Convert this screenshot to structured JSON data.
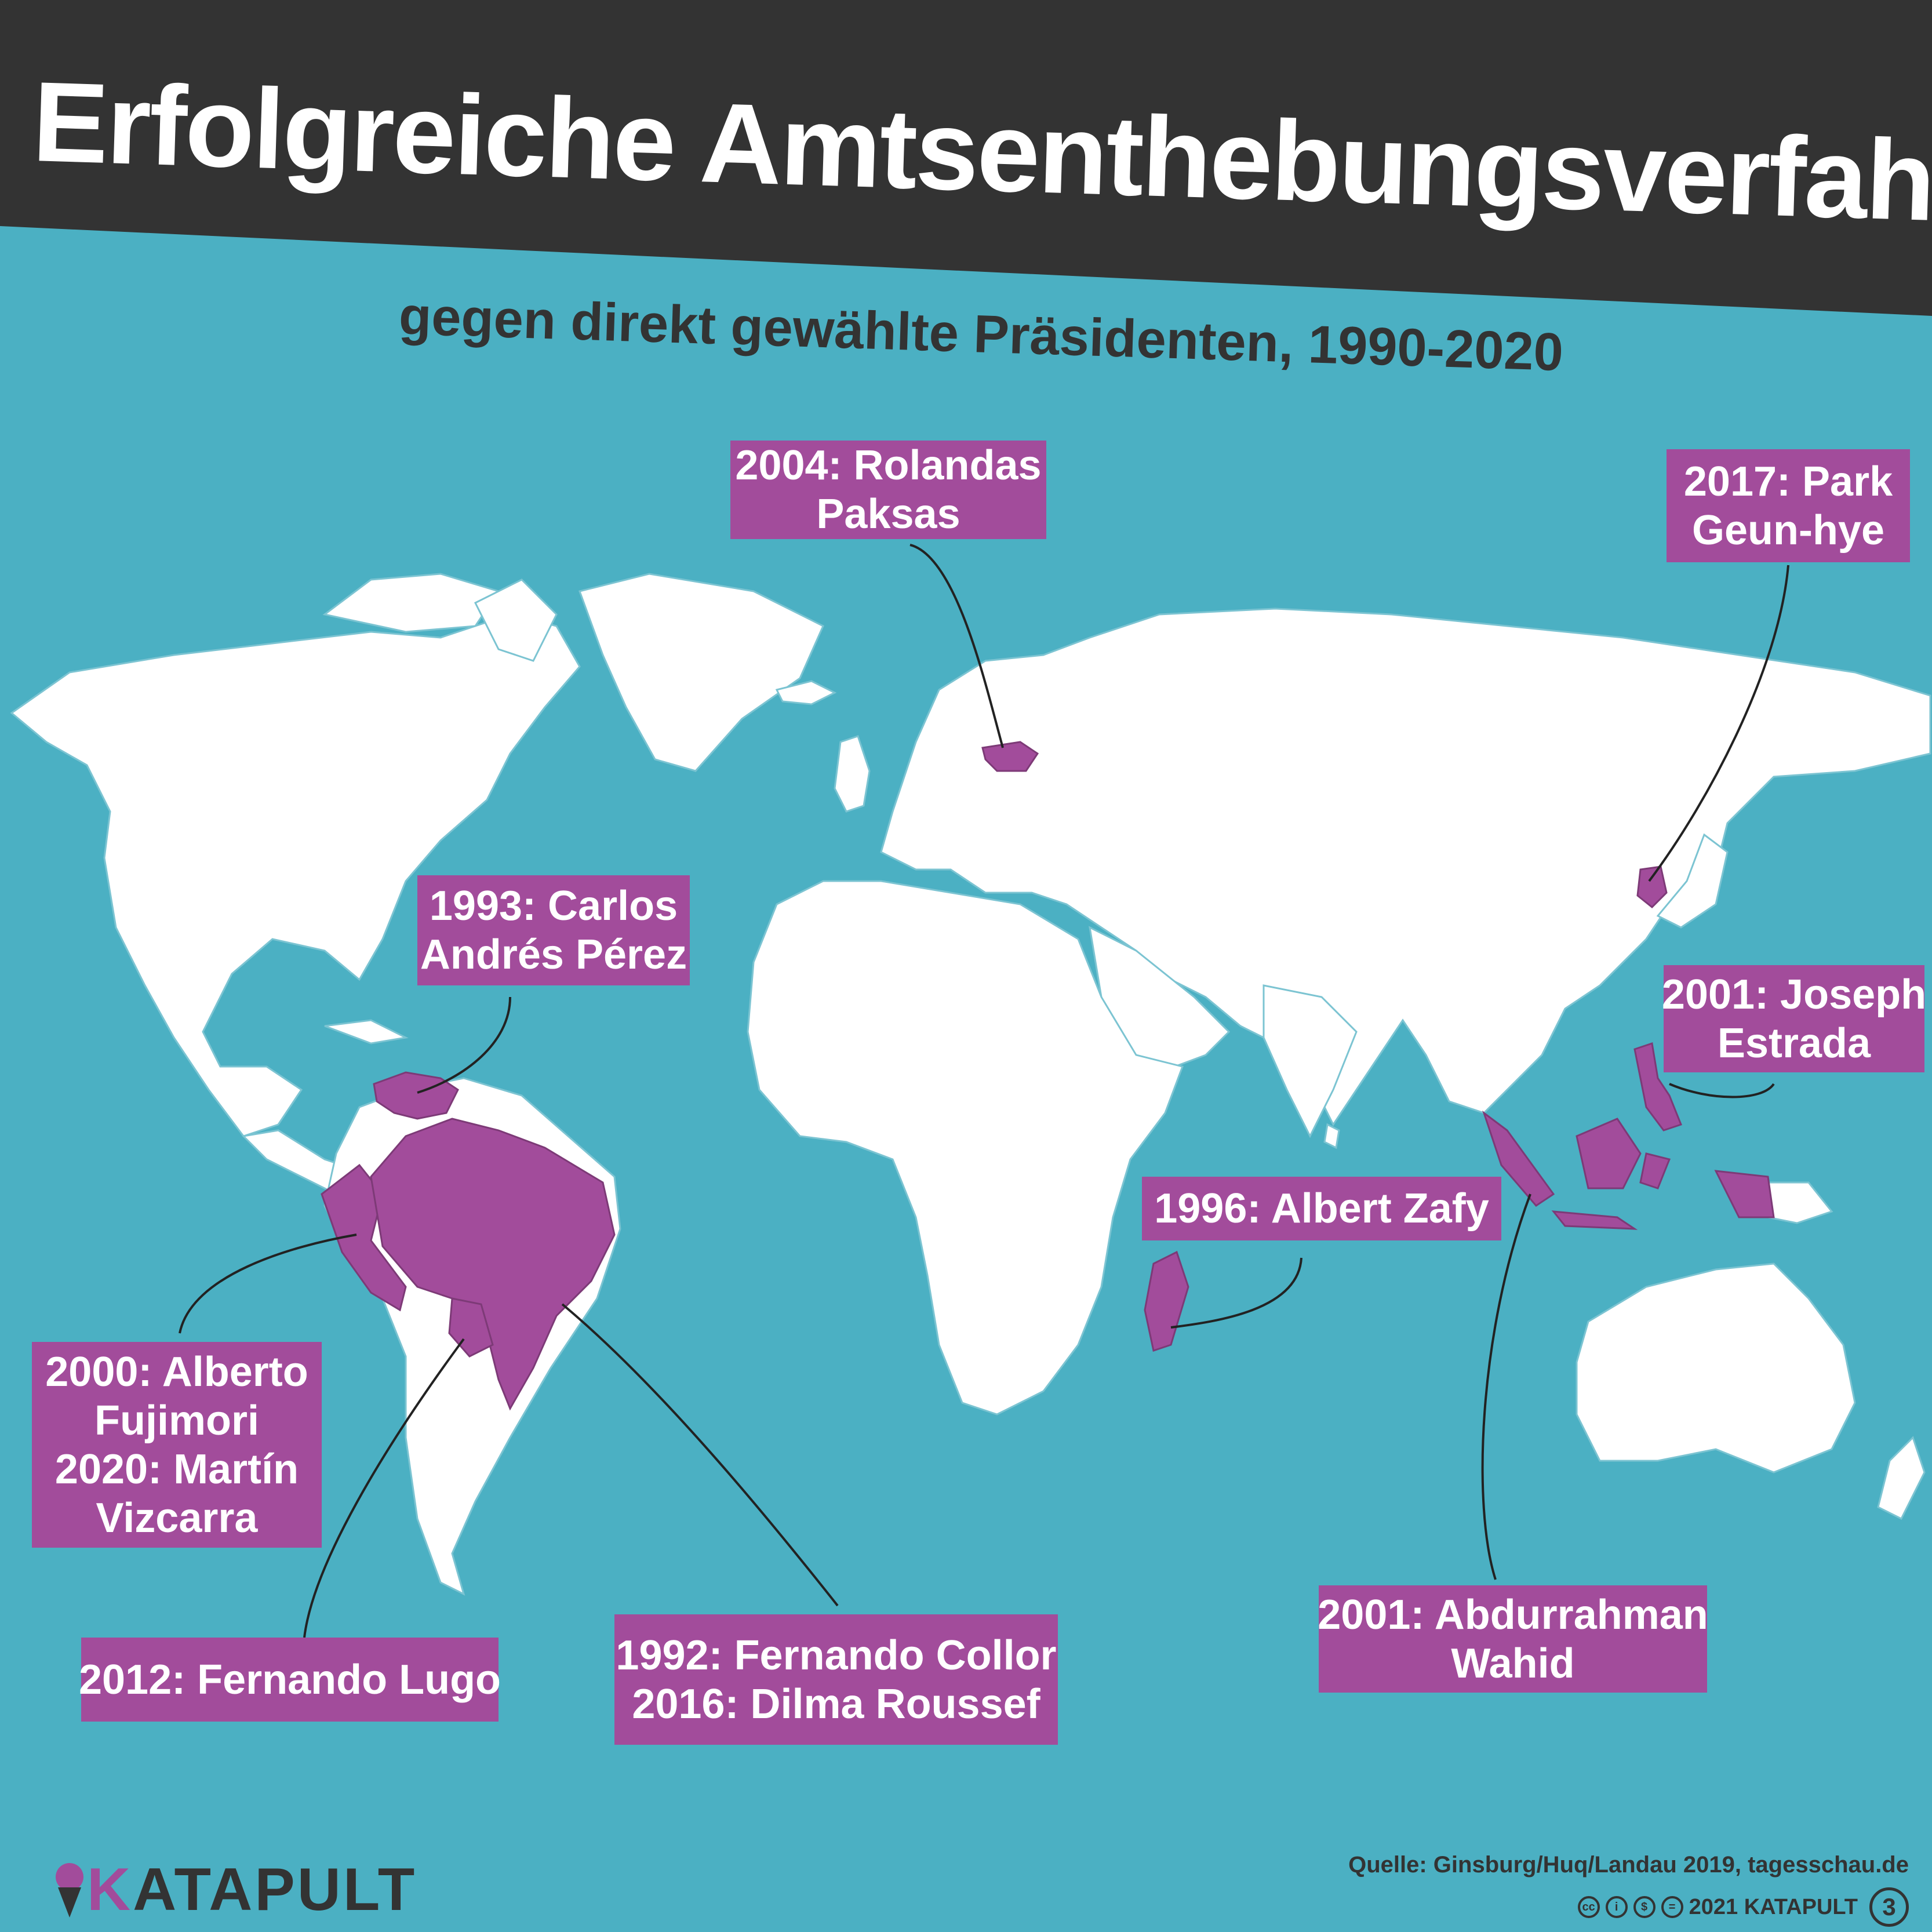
{
  "title": "Erfolgreiche Amtsenthebungsverfahren",
  "subtitle": "gegen direkt gewählte Präsidenten, 1990-2020",
  "colors": {
    "ocean": "#4bb0c3",
    "land": "#ffffff",
    "highlight": "#a24c9b",
    "title_band": "#333333",
    "text_dark": "#333333"
  },
  "labels": {
    "lithuania": [
      "2004: Rolandas",
      "Paksas"
    ],
    "south_korea": [
      "2017: Park",
      "Geun-hye"
    ],
    "venezuela": [
      "1993: Carlos",
      "Andrés Pérez"
    ],
    "philippines": [
      "2001: Joseph",
      "Estrada"
    ],
    "madagascar": [
      "1996: Albert Zafy"
    ],
    "peru": [
      "2000: Alberto",
      "Fujimori",
      "2020: Martín",
      "Vizcarra"
    ],
    "paraguay": [
      "2012: Fernando Lugo"
    ],
    "brazil": [
      "1992: Fernando Collor",
      "2016: Dilma Roussef"
    ],
    "indonesia": [
      "2001: Abdurrahman",
      "Wahid"
    ]
  },
  "footer": {
    "source": "Quelle: Ginsburg/Huq/Landau 2019, tagesschau.de",
    "copyright": "2021 KATAPULT",
    "page_number": "3",
    "logo_k": "K",
    "logo_rest": "ATAPULT",
    "license_icons": [
      "cc-icon",
      "by-icon",
      "nc-icon",
      "nd-icon"
    ]
  }
}
